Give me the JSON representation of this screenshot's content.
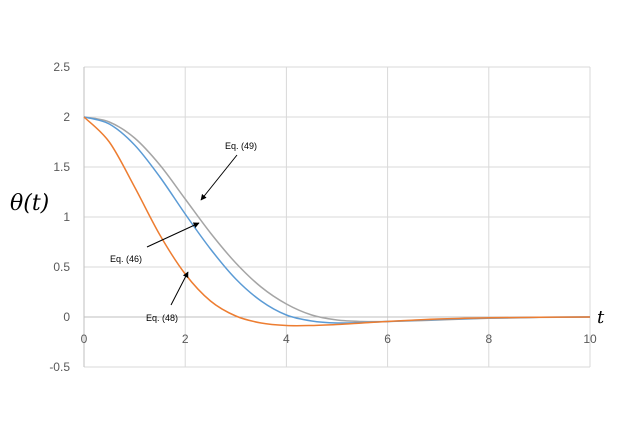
{
  "chart_data": {
    "type": "line",
    "xlabel": "t",
    "ylabel": "θ(t)",
    "xlim": [
      0,
      10
    ],
    "ylim": [
      -0.5,
      2.5
    ],
    "x_ticks": [
      "0",
      "2",
      "4",
      "6",
      "8",
      "10"
    ],
    "y_ticks": [
      "-0.5",
      "0",
      "0.5",
      "1",
      "1.5",
      "2",
      "2.5"
    ],
    "grid": true,
    "legend": "none",
    "series": [
      {
        "name": "Eq. (46)",
        "color": "#5b9bd5",
        "x": [
          0,
          0.5,
          1,
          1.5,
          2,
          2.5,
          3,
          3.5,
          4,
          4.5,
          5,
          5.5,
          6,
          7,
          8,
          9,
          10
        ],
        "y": [
          2.0,
          1.93,
          1.72,
          1.4,
          1.03,
          0.68,
          0.38,
          0.16,
          0.02,
          -0.04,
          -0.06,
          -0.055,
          -0.045,
          -0.025,
          -0.01,
          -0.003,
          0.0
        ]
      },
      {
        "name": "Eq. (48)",
        "color": "#ed7d31",
        "x": [
          0,
          0.5,
          1,
          1.5,
          2,
          2.5,
          3,
          3.5,
          4,
          4.5,
          5,
          5.5,
          6,
          7,
          8,
          9,
          10
        ],
        "y": [
          2.0,
          1.75,
          1.3,
          0.82,
          0.43,
          0.16,
          0.01,
          -0.06,
          -0.085,
          -0.085,
          -0.075,
          -0.06,
          -0.045,
          -0.02,
          -0.008,
          -0.002,
          0.0
        ]
      },
      {
        "name": "Eq. (49)",
        "color": "#a5a5a5",
        "x": [
          0,
          0.5,
          1,
          1.5,
          2,
          2.5,
          3,
          3.5,
          4,
          4.5,
          5,
          5.5,
          6,
          7,
          8,
          9,
          10
        ],
        "y": [
          2.0,
          1.95,
          1.79,
          1.52,
          1.18,
          0.84,
          0.54,
          0.3,
          0.13,
          0.02,
          -0.03,
          -0.045,
          -0.045,
          -0.03,
          -0.013,
          -0.004,
          0.0
        ]
      }
    ],
    "annotations": [
      {
        "text": "Eq. (49)",
        "series": "Eq. (49)"
      },
      {
        "text": "Eq. (46)",
        "series": "Eq. (46)"
      },
      {
        "text": "Eq. (48)",
        "series": "Eq. (48)"
      }
    ]
  }
}
